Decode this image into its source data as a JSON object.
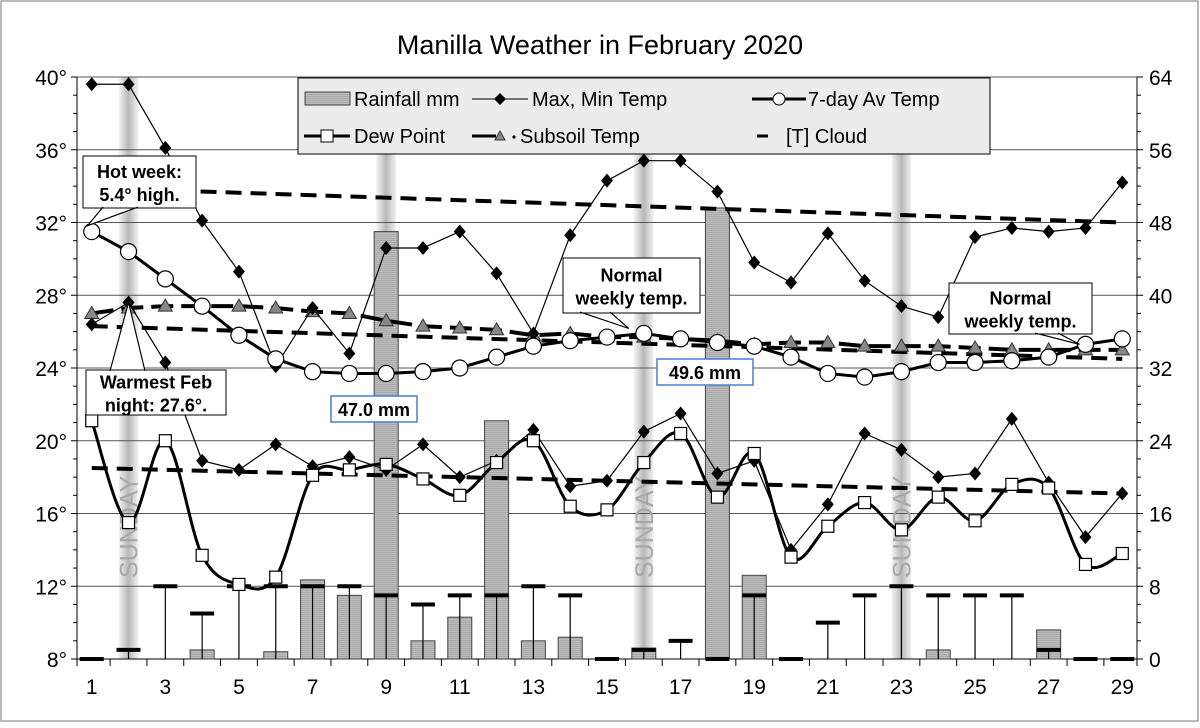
{
  "chart_data": {
    "type": "line",
    "title": "Manilla Weather in February 2020",
    "x": [
      1,
      2,
      3,
      4,
      5,
      6,
      7,
      8,
      9,
      10,
      11,
      12,
      13,
      14,
      15,
      16,
      17,
      18,
      19,
      20,
      21,
      22,
      23,
      24,
      25,
      26,
      27,
      28,
      29
    ],
    "x_ticks": [
      "1",
      "3",
      "5",
      "7",
      "9",
      "11",
      "13",
      "15",
      "17",
      "19",
      "21",
      "23",
      "25",
      "27",
      "29"
    ],
    "ylim_left": [
      8,
      40
    ],
    "y_ticks_left": [
      "8°",
      "12°",
      "16°",
      "20°",
      "24°",
      "28°",
      "32°",
      "36°",
      "40°"
    ],
    "ylim_right": [
      0,
      64
    ],
    "y_ticks_right": [
      "0",
      "8",
      "16",
      "24",
      "32",
      "40",
      "48",
      "56",
      "64"
    ],
    "grid": true,
    "legend_placement": "top-center",
    "sundays": [
      2,
      9,
      16,
      23
    ],
    "sunday_label": "SUNDAY",
    "series": [
      {
        "name": "Rainfall mm",
        "type": "bar",
        "axis": "right",
        "values": [
          0,
          0,
          0,
          1.0,
          0,
          0.8,
          8.7,
          7.0,
          47.0,
          2.0,
          4.6,
          26.2,
          2.0,
          2.4,
          0,
          1.2,
          0,
          49.6,
          9.2,
          0,
          0,
          0,
          0,
          1.0,
          0,
          0,
          3.2,
          0,
          0
        ]
      },
      {
        "name": "Max, Min Temp",
        "type": "line",
        "axis": "left",
        "part": "max",
        "values": [
          39.6,
          39.6,
          36.1,
          32.1,
          29.3,
          24.1,
          27.3,
          24.8,
          30.6,
          30.6,
          31.5,
          29.2,
          25.9,
          31.3,
          34.3,
          35.4,
          35.4,
          33.7,
          29.8,
          28.7,
          31.4,
          28.8,
          27.4,
          26.8,
          31.2,
          31.7,
          31.5,
          31.7,
          34.2
        ]
      },
      {
        "name": "Max, Min Temp",
        "type": "line",
        "axis": "left",
        "part": "min",
        "values": [
          26.4,
          27.6,
          24.3,
          18.9,
          18.4,
          19.8,
          18.6,
          19.1,
          18.4,
          19.8,
          18.0,
          18.9,
          20.6,
          17.5,
          17.8,
          20.5,
          21.5,
          18.2,
          18.9,
          14.0,
          16.5,
          20.4,
          19.5,
          18.0,
          18.2,
          21.2,
          17.7,
          14.7,
          17.1
        ]
      },
      {
        "name": "7-day Av Temp",
        "type": "line",
        "axis": "left",
        "values": [
          31.5,
          30.4,
          28.9,
          27.4,
          25.8,
          24.5,
          23.8,
          23.7,
          23.7,
          23.8,
          24.0,
          24.6,
          25.2,
          25.5,
          25.7,
          25.9,
          25.6,
          25.4,
          25.2,
          24.6,
          23.7,
          23.5,
          23.8,
          24.3,
          24.3,
          24.4,
          24.6,
          25.3,
          25.6
        ]
      },
      {
        "name": "Dew Point",
        "type": "line",
        "axis": "left",
        "values": [
          21.1,
          15.5,
          20.0,
          13.7,
          12.1,
          12.5,
          18.1,
          18.4,
          18.7,
          17.9,
          17.0,
          18.8,
          20.0,
          16.4,
          16.2,
          18.8,
          20.4,
          16.9,
          19.3,
          13.6,
          15.3,
          16.6,
          15.1,
          16.9,
          15.6,
          17.6,
          17.4,
          13.2,
          13.8
        ]
      },
      {
        "name": "Subsoil Temp",
        "type": "line",
        "axis": "left",
        "values": [
          27.0,
          27.3,
          27.4,
          27.4,
          27.4,
          27.3,
          27.1,
          27.0,
          26.6,
          26.3,
          26.2,
          26.1,
          25.8,
          25.9,
          25.7,
          25.7,
          25.6,
          25.5,
          25.3,
          25.4,
          25.4,
          25.2,
          25.2,
          25.2,
          25.1,
          25.0,
          25.0,
          25.0,
          25.0
        ]
      },
      {
        "name": "[T] Cloud",
        "type": "marker",
        "axis": "right",
        "values": [
          0,
          1,
          8,
          5,
          8,
          8,
          8,
          8,
          7,
          6,
          7,
          7,
          8,
          7,
          0,
          1,
          2,
          0,
          7,
          0,
          4,
          7,
          8,
          7,
          7,
          7,
          1,
          0,
          0
        ]
      }
    ],
    "reference_lines": [
      {
        "axis": "left",
        "from": [
          2.6,
          33.8
        ],
        "to": [
          29,
          32.0
        ]
      },
      {
        "axis": "left",
        "from": [
          1,
          26.3
        ],
        "to": [
          29,
          24.5
        ]
      },
      {
        "axis": "left",
        "from": [
          1,
          18.5
        ],
        "to": [
          29,
          17.1
        ]
      }
    ],
    "annotations": [
      {
        "line1": "Hot week:",
        "line2": "5.4° high."
      },
      {
        "line1": "Warmest Feb",
        "line2": "night: 27.6°."
      },
      {
        "line1": "47.0 mm"
      },
      {
        "line1": "49.6 mm"
      },
      {
        "line1": "Normal",
        "line2": "weekly temp."
      },
      {
        "line1": "Normal",
        "line2": "weekly temp."
      }
    ],
    "colors": {
      "rain": "#b4b4b4",
      "sunday": "#bcbcbc",
      "legend_bg": "#ececec",
      "label_border": "#4a7fd0"
    }
  }
}
